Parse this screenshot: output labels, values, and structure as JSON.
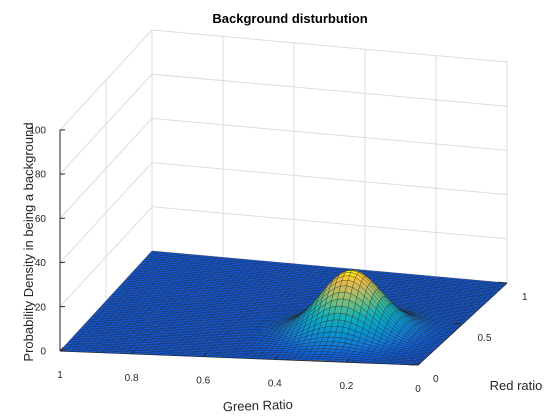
{
  "chart_data": {
    "type": "surface",
    "title": "Background disturbution",
    "xlabel": "Green Ratio",
    "ylabel": "Red ratio",
    "zlabel": "Probability Density in being a background",
    "x_range": [
      0,
      1
    ],
    "y_range": [
      0,
      1
    ],
    "z_range": [
      0,
      100
    ],
    "x_ticks": [
      "1",
      "0.8",
      "0.6",
      "0.4",
      "0.2",
      "0"
    ],
    "y_ticks": [
      "0",
      "0.5",
      "1"
    ],
    "z_ticks": [
      "0",
      "20",
      "40",
      "60",
      "80",
      "100"
    ],
    "grid": true,
    "colormap": "parula",
    "surface": {
      "form": "gaussian",
      "grid_size": 60,
      "peak_x": 0.27,
      "peak_y": 0.33,
      "peak_z": 28,
      "sigma_x": 0.085,
      "sigma_y": 0.11,
      "baseline_z": 0
    }
  }
}
